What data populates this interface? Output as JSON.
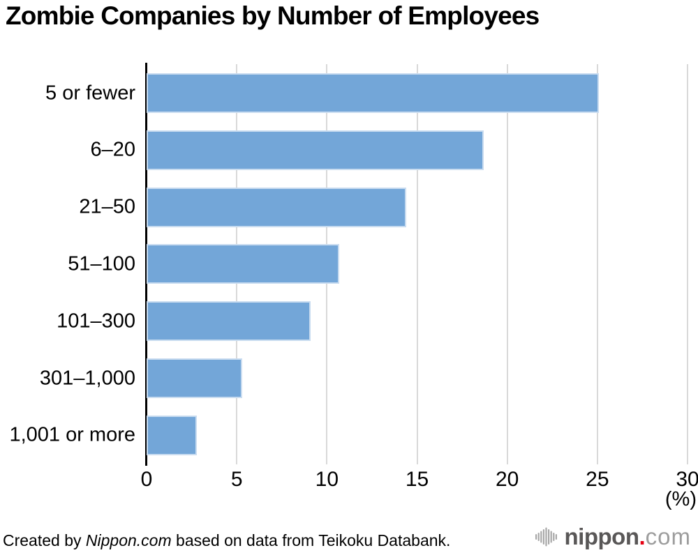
{
  "chart_data": {
    "type": "bar",
    "orientation": "horizontal",
    "title": "Zombie Companies by Number of Employees",
    "categories": [
      "5 or fewer",
      "6–20",
      "21–50",
      "51–100",
      "101–300",
      "301–1,000",
      "1,001 or more"
    ],
    "values": [
      25.1,
      18.7,
      14.4,
      10.7,
      9.1,
      5.3,
      2.8
    ],
    "xlabel": "",
    "ylabel": "",
    "unit_label": "(%)",
    "xlim": [
      0,
      30
    ],
    "xticks": [
      0,
      5,
      10,
      15,
      20,
      25,
      30
    ],
    "grid": "vertical-gridlines-on",
    "legend": "none"
  },
  "colors": {
    "bar": "#73a6d8",
    "bar_edge": "#c9dcf0",
    "gridline": "#d9d9d9",
    "axis": "#000000",
    "logo_icon": "#a8a8a8",
    "logo_dark": "#595757",
    "logo_light": "#9d9d9d",
    "logo_dot": "#e60012"
  },
  "footer": {
    "credit_prefix": "Created by",
    "credit_source": "Nippon.com",
    "credit_suffix": "based on data from Teikoku Databank.",
    "logo": {
      "icon": "soundwave-icon",
      "main": "nippon",
      "dot": ".",
      "suffix": "com"
    }
  }
}
